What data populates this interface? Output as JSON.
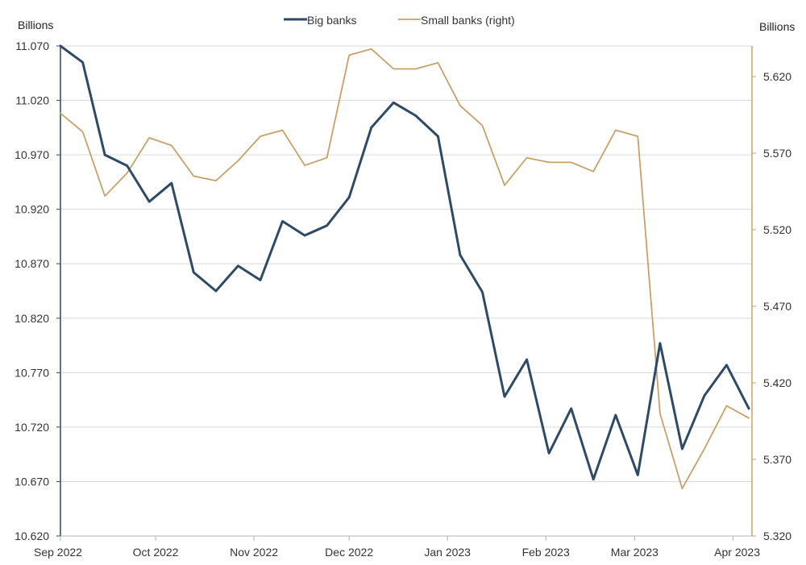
{
  "chart_data": {
    "type": "line",
    "left_unit_label": "Billions",
    "right_unit_label": "Billions",
    "x_ticks": [
      "Sep 2022",
      "Oct 2022",
      "Nov 2022",
      "Dec 2022",
      "Jan 2023",
      "Feb 2023",
      "Mar 2023",
      "Apr 2023"
    ],
    "x_tick_dates": [
      "2022-09-01",
      "2022-10-01",
      "2022-11-01",
      "2022-12-01",
      "2023-01-01",
      "2023-02-01",
      "2023-03-01",
      "2023-04-01"
    ],
    "x_range": [
      "2022-09-01",
      "2023-04-07"
    ],
    "left_axis": {
      "ylim": [
        10.62,
        11.07
      ],
      "ticks": [
        "10.620",
        "10.670",
        "10.720",
        "10.770",
        "10.820",
        "10.870",
        "10.920",
        "10.970",
        "11.020",
        "11.070"
      ]
    },
    "right_axis": {
      "ylim": [
        5.32,
        5.64
      ],
      "ticks": [
        "5.320",
        "5.370",
        "5.420",
        "5.470",
        "5.520",
        "5.570",
        "5.620"
      ]
    },
    "grid": true,
    "legend_position": "top-center",
    "x": [
      "2022-09-01",
      "2022-09-08",
      "2022-09-15",
      "2022-09-22",
      "2022-09-29",
      "2022-10-06",
      "2022-10-13",
      "2022-10-20",
      "2022-10-27",
      "2022-11-03",
      "2022-11-10",
      "2022-11-17",
      "2022-11-24",
      "2022-12-01",
      "2022-12-08",
      "2022-12-15",
      "2022-12-22",
      "2022-12-29",
      "2023-01-05",
      "2023-01-12",
      "2023-01-19",
      "2023-01-26",
      "2023-02-02",
      "2023-02-09",
      "2023-02-16",
      "2023-02-23",
      "2023-03-02",
      "2023-03-09",
      "2023-03-16",
      "2023-03-23",
      "2023-03-30",
      "2023-04-06"
    ],
    "series": [
      {
        "name": "Big banks",
        "axis": "left",
        "color": "#2e4a66",
        "values": [
          11.07,
          11.055,
          10.97,
          10.96,
          10.927,
          10.944,
          10.862,
          10.845,
          10.868,
          10.855,
          10.909,
          10.896,
          10.905,
          10.931,
          10.995,
          11.018,
          11.006,
          10.987,
          10.878,
          10.844,
          10.748,
          10.782,
          10.696,
          10.737,
          10.672,
          10.731,
          10.676,
          10.797,
          10.7,
          10.749,
          10.777,
          10.737
        ]
      },
      {
        "name": "Small banks (right)",
        "axis": "right",
        "color": "#c9a069",
        "values": [
          5.596,
          5.584,
          5.542,
          5.557,
          5.58,
          5.575,
          5.555,
          5.552,
          5.565,
          5.581,
          5.585,
          5.562,
          5.567,
          5.634,
          5.638,
          5.625,
          5.625,
          5.629,
          5.601,
          5.588,
          5.549,
          5.567,
          5.564,
          5.564,
          5.558,
          5.585,
          5.581,
          5.4,
          5.351,
          5.377,
          5.405,
          5.397
        ]
      }
    ]
  }
}
